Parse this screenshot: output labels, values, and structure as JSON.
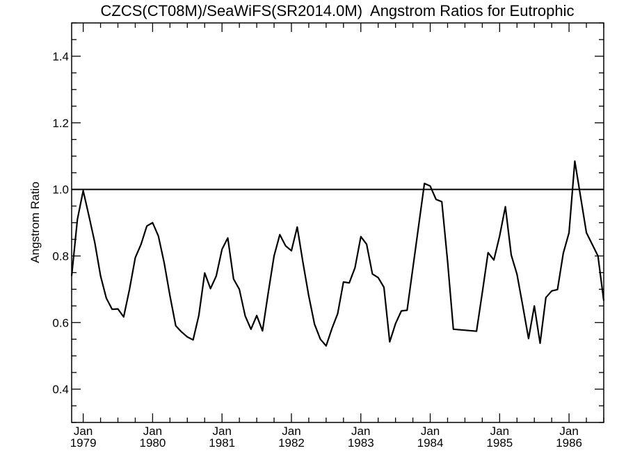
{
  "chart_data": {
    "type": "line",
    "title": "CZCS(CT08M)/SeaWiFS(SR2014.0M)  Angstrom Ratios for Eutrophic",
    "xlabel": "",
    "ylabel": "Angstrom Ratio",
    "xlim": [
      "1978-11",
      "1986-07"
    ],
    "ylim": [
      0.3,
      1.5
    ],
    "reference_line": 1.0,
    "y_ticks": [
      {
        "value": 0.4,
        "label": "0.4"
      },
      {
        "value": 0.6,
        "label": "0.6"
      },
      {
        "value": 0.8,
        "label": "0.8"
      },
      {
        "value": 1.0,
        "label": "1.0"
      },
      {
        "value": 1.2,
        "label": "1.2"
      },
      {
        "value": 1.4,
        "label": "1.4"
      }
    ],
    "x_ticks": [
      {
        "value": "1979-01",
        "month": "Jan",
        "year": "1979"
      },
      {
        "value": "1980-01",
        "month": "Jan",
        "year": "1980"
      },
      {
        "value": "1981-01",
        "month": "Jan",
        "year": "1981"
      },
      {
        "value": "1982-01",
        "month": "Jan",
        "year": "1982"
      },
      {
        "value": "1983-01",
        "month": "Jan",
        "year": "1983"
      },
      {
        "value": "1984-01",
        "month": "Jan",
        "year": "1984"
      },
      {
        "value": "1985-01",
        "month": "Jan",
        "year": "1985"
      },
      {
        "value": "1986-01",
        "month": "Jan",
        "year": "1986"
      }
    ],
    "series": [
      {
        "x": [
          "1978-11",
          "1978-12",
          "1979-01",
          "1979-02",
          "1979-03",
          "1979-04",
          "1979-05",
          "1979-06",
          "1979-07",
          "1979-08",
          "1979-09",
          "1979-10",
          "1979-11",
          "1979-12",
          "1980-01",
          "1980-02",
          "1980-03",
          "1980-04",
          "1980-05",
          "1980-06",
          "1980-07",
          "1980-08",
          "1980-09",
          "1980-10",
          "1980-11",
          "1980-12",
          "1981-01",
          "1981-02",
          "1981-03",
          "1981-04",
          "1981-05",
          "1981-06",
          "1981-07",
          "1981-08",
          "1981-09",
          "1981-10",
          "1981-11",
          "1981-12",
          "1982-01",
          "1982-02",
          "1982-03",
          "1982-04",
          "1982-05",
          "1982-06",
          "1982-07",
          "1982-08",
          "1982-09",
          "1982-10",
          "1982-11",
          "1982-12",
          "1983-01",
          "1983-02",
          "1983-03",
          "1983-04",
          "1983-05",
          "1983-06",
          "1983-07",
          "1983-08",
          "1983-09",
          "1983-12",
          "1984-01",
          "1984-02",
          "1984-03",
          "1984-04",
          "1984-05",
          "1984-09",
          "1984-10",
          "1984-11",
          "1984-12",
          "1985-01",
          "1985-02",
          "1985-03",
          "1985-04",
          "1985-05",
          "1985-06",
          "1985-07",
          "1985-08",
          "1985-09",
          "1985-10",
          "1985-11",
          "1985-12",
          "1986-01",
          "1986-02",
          "1986-04",
          "1986-05",
          "1986-06",
          "1986-07"
        ],
        "y": [
          0.74,
          0.91,
          0.996,
          0.92,
          0.84,
          0.74,
          0.673,
          0.64,
          0.641,
          0.617,
          0.7,
          0.795,
          0.835,
          0.89,
          0.9,
          0.86,
          0.78,
          0.68,
          0.59,
          0.572,
          0.557,
          0.548,
          0.622,
          0.749,
          0.702,
          0.74,
          0.82,
          0.854,
          0.731,
          0.7,
          0.62,
          0.58,
          0.621,
          0.575,
          0.69,
          0.8,
          0.864,
          0.83,
          0.816,
          0.887,
          0.78,
          0.68,
          0.595,
          0.55,
          0.53,
          0.582,
          0.627,
          0.722,
          0.719,
          0.765,
          0.858,
          0.835,
          0.746,
          0.735,
          0.706,
          0.542,
          0.597,
          0.635,
          0.637,
          1.018,
          1.01,
          0.97,
          0.963,
          0.784,
          0.58,
          0.574,
          0.69,
          0.81,
          0.788,
          0.86,
          0.948,
          0.803,
          0.745,
          0.65,
          0.552,
          0.65,
          0.538,
          0.675,
          0.695,
          0.699,
          0.808,
          0.87,
          1.085,
          0.87,
          0.835,
          0.8,
          0.666
        ]
      }
    ]
  }
}
